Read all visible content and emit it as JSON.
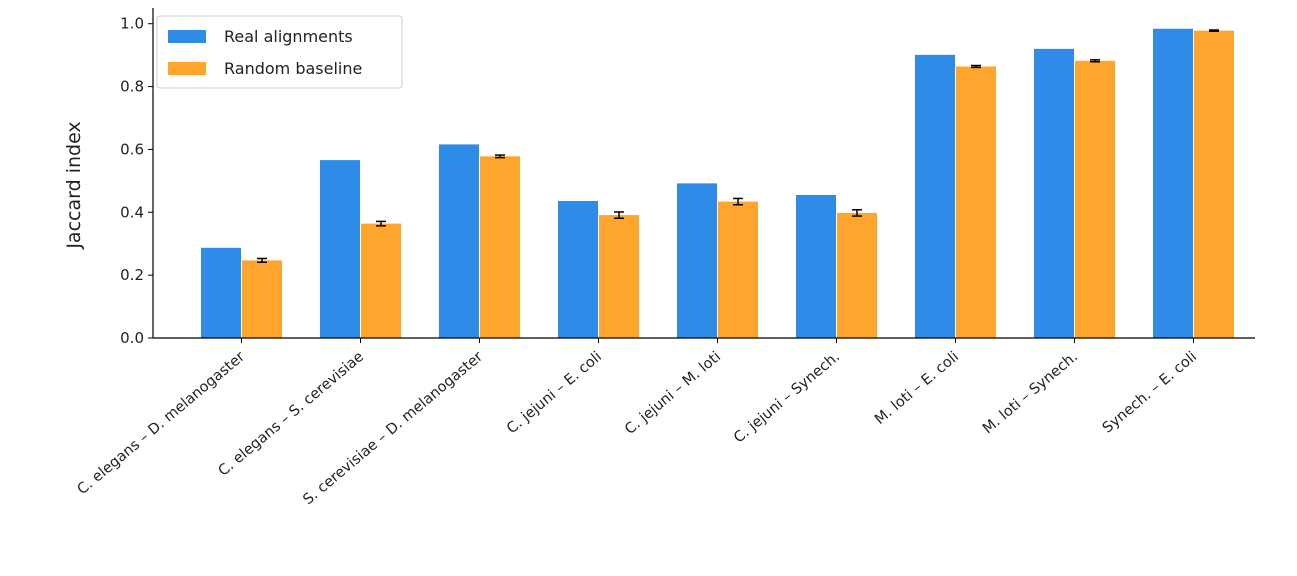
{
  "chart_data": {
    "type": "bar",
    "title": "",
    "xlabel": "",
    "ylabel": "Jaccard index",
    "ylim": [
      0,
      1.05
    ],
    "yticks": [
      "0.0",
      "0.2",
      "0.4",
      "0.6",
      "0.8",
      "1.0"
    ],
    "categories": [
      "C. elegans – D. melanogaster",
      "C. elegans – S. cerevisiae",
      "S. cerevisiae – D. melanogaster",
      "C. jejuni – E. coli",
      "C. jejuni – M. loti",
      "C. jejuni – Synech.",
      "M. loti – E. coli",
      "M. loti – Synech.",
      "Synech. – E. coli"
    ],
    "series": [
      {
        "name": "Real alignments",
        "color": "#2e8ce8",
        "values": [
          0.287,
          0.566,
          0.616,
          0.436,
          0.492,
          0.455,
          0.901,
          0.92,
          0.984
        ]
      },
      {
        "name": "Random baseline",
        "color": "#ffa52e",
        "values": [
          0.247,
          0.364,
          0.578,
          0.391,
          0.434,
          0.398,
          0.864,
          0.882,
          0.978
        ],
        "errors": [
          0.006,
          0.007,
          0.004,
          0.01,
          0.01,
          0.01,
          0.003,
          0.003,
          0.002
        ]
      }
    ],
    "legend_position": "top-left",
    "grid": false
  }
}
